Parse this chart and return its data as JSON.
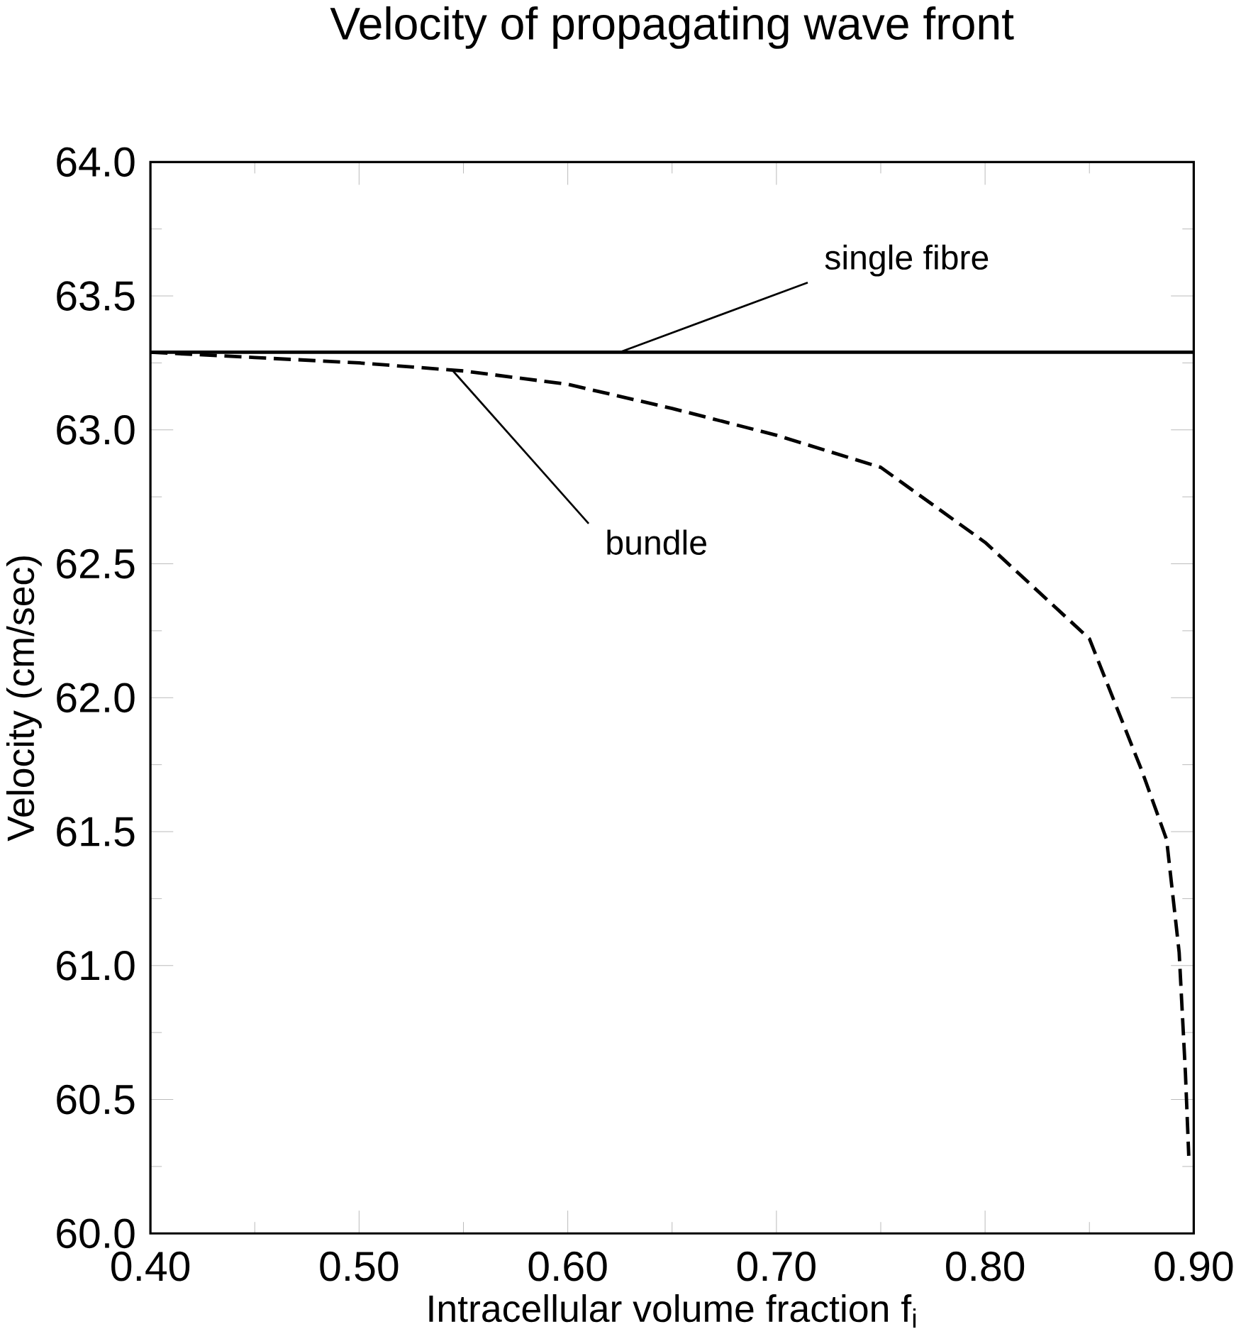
{
  "chart_data": {
    "type": "line",
    "title": "Velocity of propagating wave front",
    "xlabel": "Intracellular volume fraction f$_{i}$",
    "ylabel": "Velocity (cm/sec)",
    "series": [
      {
        "x": [
          0.4,
          0.9
        ],
        "values": [
          63.29,
          63.29
        ],
        "color": "#000000",
        "line_style": "solid"
      },
      {
        "x": [
          0.4,
          0.45,
          0.5,
          0.55,
          0.6,
          0.65,
          0.7,
          0.75,
          0.8,
          0.85,
          0.875,
          0.887,
          0.893,
          0.896,
          0.8976
        ],
        "values": [
          63.29,
          63.27,
          63.25,
          63.22,
          63.17,
          63.08,
          62.98,
          62.86,
          62.58,
          62.22,
          61.73,
          61.47,
          61.05,
          60.6,
          60.29
        ],
        "color": "#000000",
        "line_style": "dashed"
      }
    ],
    "annotations": [
      {
        "text": "single fibre",
        "x": 0.625,
        "y": 63.29
      },
      {
        "text": "bundle",
        "x": 0.545,
        "y": 63.22
      }
    ],
    "xlim": [
      0.4,
      0.9
    ],
    "ylim": [
      60.0,
      64.0
    ],
    "xticks": [
      {
        "value": 0.4,
        "label": "0.40"
      },
      {
        "value": 0.5,
        "label": "0.50"
      },
      {
        "value": 0.6,
        "label": "0.60"
      },
      {
        "value": 0.7,
        "label": "0.70"
      },
      {
        "value": 0.8,
        "label": "0.80"
      },
      {
        "value": 0.9,
        "label": "0.90"
      }
    ],
    "yticks": [
      {
        "value": 60,
        "label": "60.0"
      },
      60.5,
      {
        "value": 61,
        "label": "61.0"
      },
      61.5,
      {
        "value": 62,
        "label": "62.0"
      },
      62.5,
      {
        "value": 63,
        "label": "63.0"
      },
      63.5,
      {
        "value": 64,
        "label": "64.0"
      }
    ],
    "grid": false,
    "marker": "none"
  }
}
